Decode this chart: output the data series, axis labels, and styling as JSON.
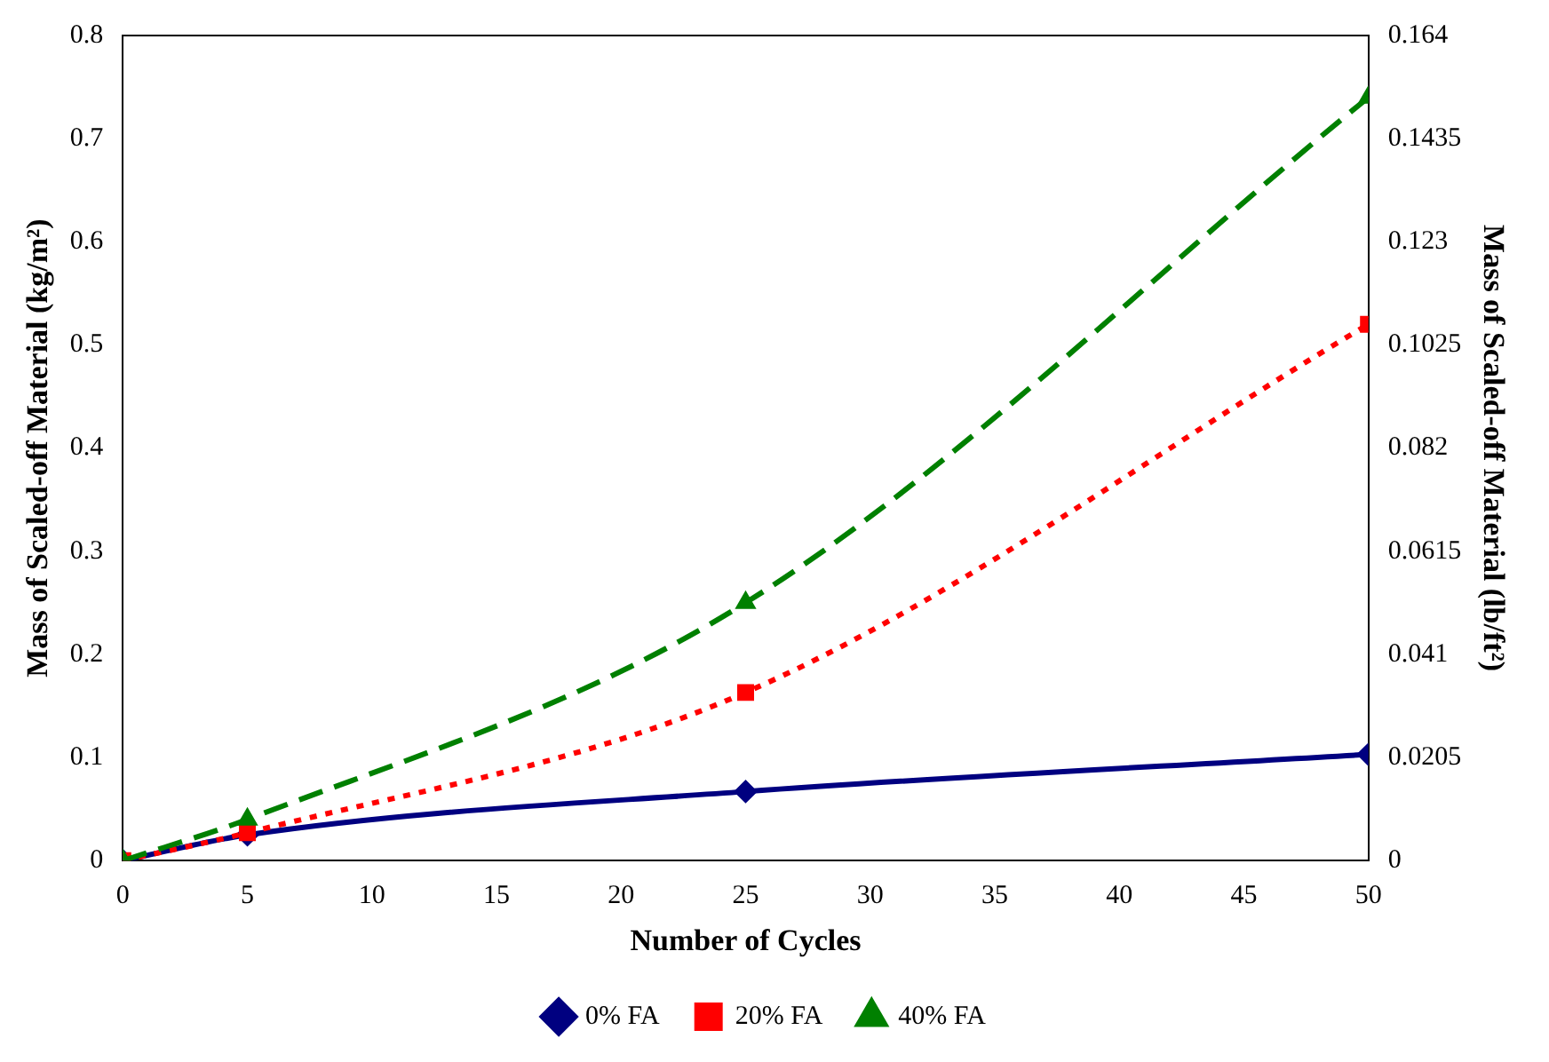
{
  "chart_data": {
    "type": "line",
    "xlabel": "Number of Cycles",
    "ylabel": "Mass of Scaled-off Material (kg/m²)",
    "y2label": "Mass of Scaled-off Material (lb/ft²)",
    "x": [
      0,
      5,
      25,
      50
    ],
    "xlim": [
      0,
      50
    ],
    "xticks": [
      0,
      5,
      10,
      15,
      20,
      25,
      30,
      35,
      40,
      45,
      50
    ],
    "ylim": [
      0,
      0.8
    ],
    "yticks": [
      0,
      0.1,
      0.2,
      0.3,
      0.4,
      0.5,
      0.6,
      0.7,
      0.8
    ],
    "y2lim": [
      0,
      0.164
    ],
    "y2ticks": [
      0,
      0.0205,
      0.041,
      0.0615,
      0.082,
      0.1025,
      0.123,
      0.1435,
      0.164
    ],
    "grid": false,
    "legend": "bottom",
    "series": [
      {
        "name": "0% FA",
        "color": "#000080",
        "values": [
          0,
          0.025,
          0.067,
          0.103
        ],
        "marker": "diamond",
        "line_style": "solid"
      },
      {
        "name": "20% FA",
        "color": "#ff0000",
        "values": [
          0,
          0.027,
          0.163,
          0.52
        ],
        "marker": "square",
        "line_style": "dotted"
      },
      {
        "name": "40% FA",
        "color": "#008000",
        "values": [
          0,
          0.04,
          0.25,
          0.74
        ],
        "marker": "triangle",
        "line_style": "dashed"
      }
    ]
  }
}
